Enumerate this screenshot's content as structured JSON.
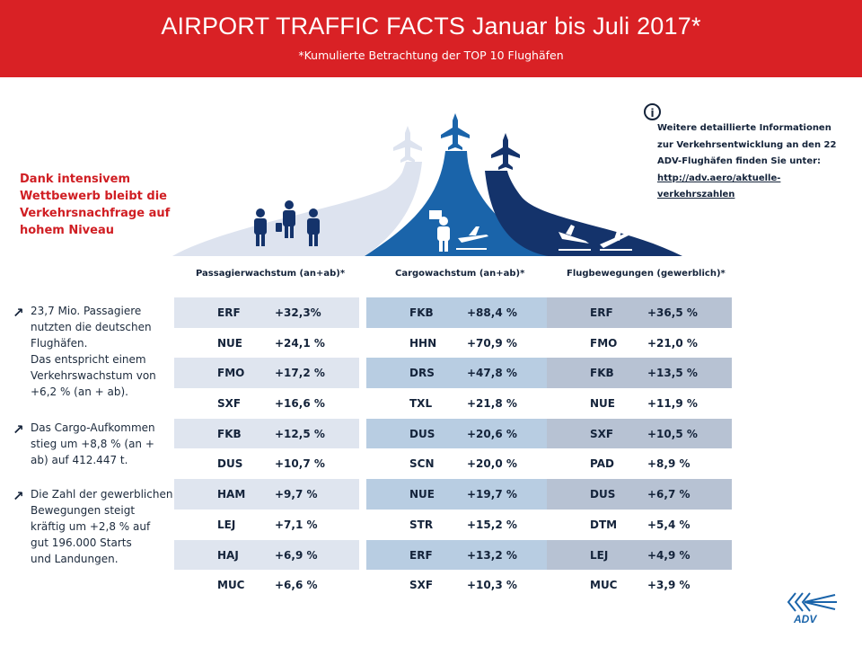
{
  "header": {
    "title": "AIRPORT TRAFFIC FACTS Januar bis Juli 2017*",
    "subtitle": "*Kumulierte Betrachtung der TOP 10 Flughäfen"
  },
  "headline": "Dank intensivem Wettbewerb bleibt die Verkehrsnachfrage auf hohem Niveau",
  "info": {
    "icon": "info-icon",
    "lines": [
      "Weitere detaillierte Informationen",
      "zur Verkehrsentwicklung an den 22",
      "ADV-Flughäfen finden Sie unter:"
    ],
    "link_lines": [
      "http://adv.aero/aktuelle-",
      "verkehrszahlen"
    ]
  },
  "notes": [
    {
      "icon": "trend-up-arrow-icon",
      "text": "23,7 Mio. Passagiere\nnutzten die deutschen\nFlughäfen.\nDas entspricht einem\nVerkehrswachstum von\n+6,2 % (an + ab)."
    },
    {
      "icon": "trend-up-arrow-icon",
      "text": "Das Cargo-Aufkommen\nstieg um +8,8 % (an +\nab) auf 412.447 t."
    },
    {
      "icon": "trend-up-arrow-icon",
      "text": "Die Zahl der gewerblichen\nBewegungen steigt\nkräftig um +2,8 % auf\ngut 196.000 Starts\nund Landungen."
    }
  ],
  "colors": {
    "header_red": "#d92125",
    "passengers": "#dde3ef",
    "cargo": "#1a64aa",
    "movements": "#14336b",
    "row_passengers": "#dfe5ef",
    "row_cargo": "#b8cde2",
    "row_movements": "#b7c2d3"
  },
  "chart_data": {
    "type": "table",
    "tables": [
      {
        "title": "Passagierwachstum (an+ab)*",
        "rows": [
          {
            "code": "ERF",
            "value": "+32,3%"
          },
          {
            "code": "NUE",
            "value": "+24,1 %"
          },
          {
            "code": "FMO",
            "value": "+17,2 %"
          },
          {
            "code": "SXF",
            "value": "+16,6 %"
          },
          {
            "code": "FKB",
            "value": "+12,5 %"
          },
          {
            "code": "DUS",
            "value": "+10,7 %"
          },
          {
            "code": "HAM",
            "value": "+9,7 %"
          },
          {
            "code": "LEJ",
            "value": "+7,1 %"
          },
          {
            "code": "HAJ",
            "value": "+6,9 %"
          },
          {
            "code": "MUC",
            "value": "+6,6 %"
          }
        ]
      },
      {
        "title": "Cargowachstum (an+ab)*",
        "rows": [
          {
            "code": "FKB",
            "value": "+88,4 %"
          },
          {
            "code": "HHN",
            "value": "+70,9 %"
          },
          {
            "code": "DRS",
            "value": "+47,8 %"
          },
          {
            "code": "TXL",
            "value": "+21,8 %"
          },
          {
            "code": "DUS",
            "value": "+20,6 %"
          },
          {
            "code": "SCN",
            "value": "+20,0 %"
          },
          {
            "code": "NUE",
            "value": "+19,7 %"
          },
          {
            "code": "STR",
            "value": "+15,2 %"
          },
          {
            "code": "ERF",
            "value": "+13,2 %"
          },
          {
            "code": "SXF",
            "value": "+10,3 %"
          }
        ]
      },
      {
        "title": "Flugbewegungen (gewerblich)*",
        "rows": [
          {
            "code": "ERF",
            "value": "+36,5 %"
          },
          {
            "code": "FMO",
            "value": "+21,0 %"
          },
          {
            "code": "FKB",
            "value": "+13,5 %"
          },
          {
            "code": "NUE",
            "value": "+11,9 %"
          },
          {
            "code": "SXF",
            "value": "+10,5 %"
          },
          {
            "code": "PAD",
            "value": "+8,9 %"
          },
          {
            "code": "DUS",
            "value": "+6,7 %"
          },
          {
            "code": "DTM",
            "value": "+5,4 %"
          },
          {
            "code": "LEJ",
            "value": "+4,9 %"
          },
          {
            "code": "MUC",
            "value": "+3,9 %"
          }
        ]
      }
    ]
  },
  "logo": {
    "text": "ADV",
    "icon": "adv-logo"
  }
}
